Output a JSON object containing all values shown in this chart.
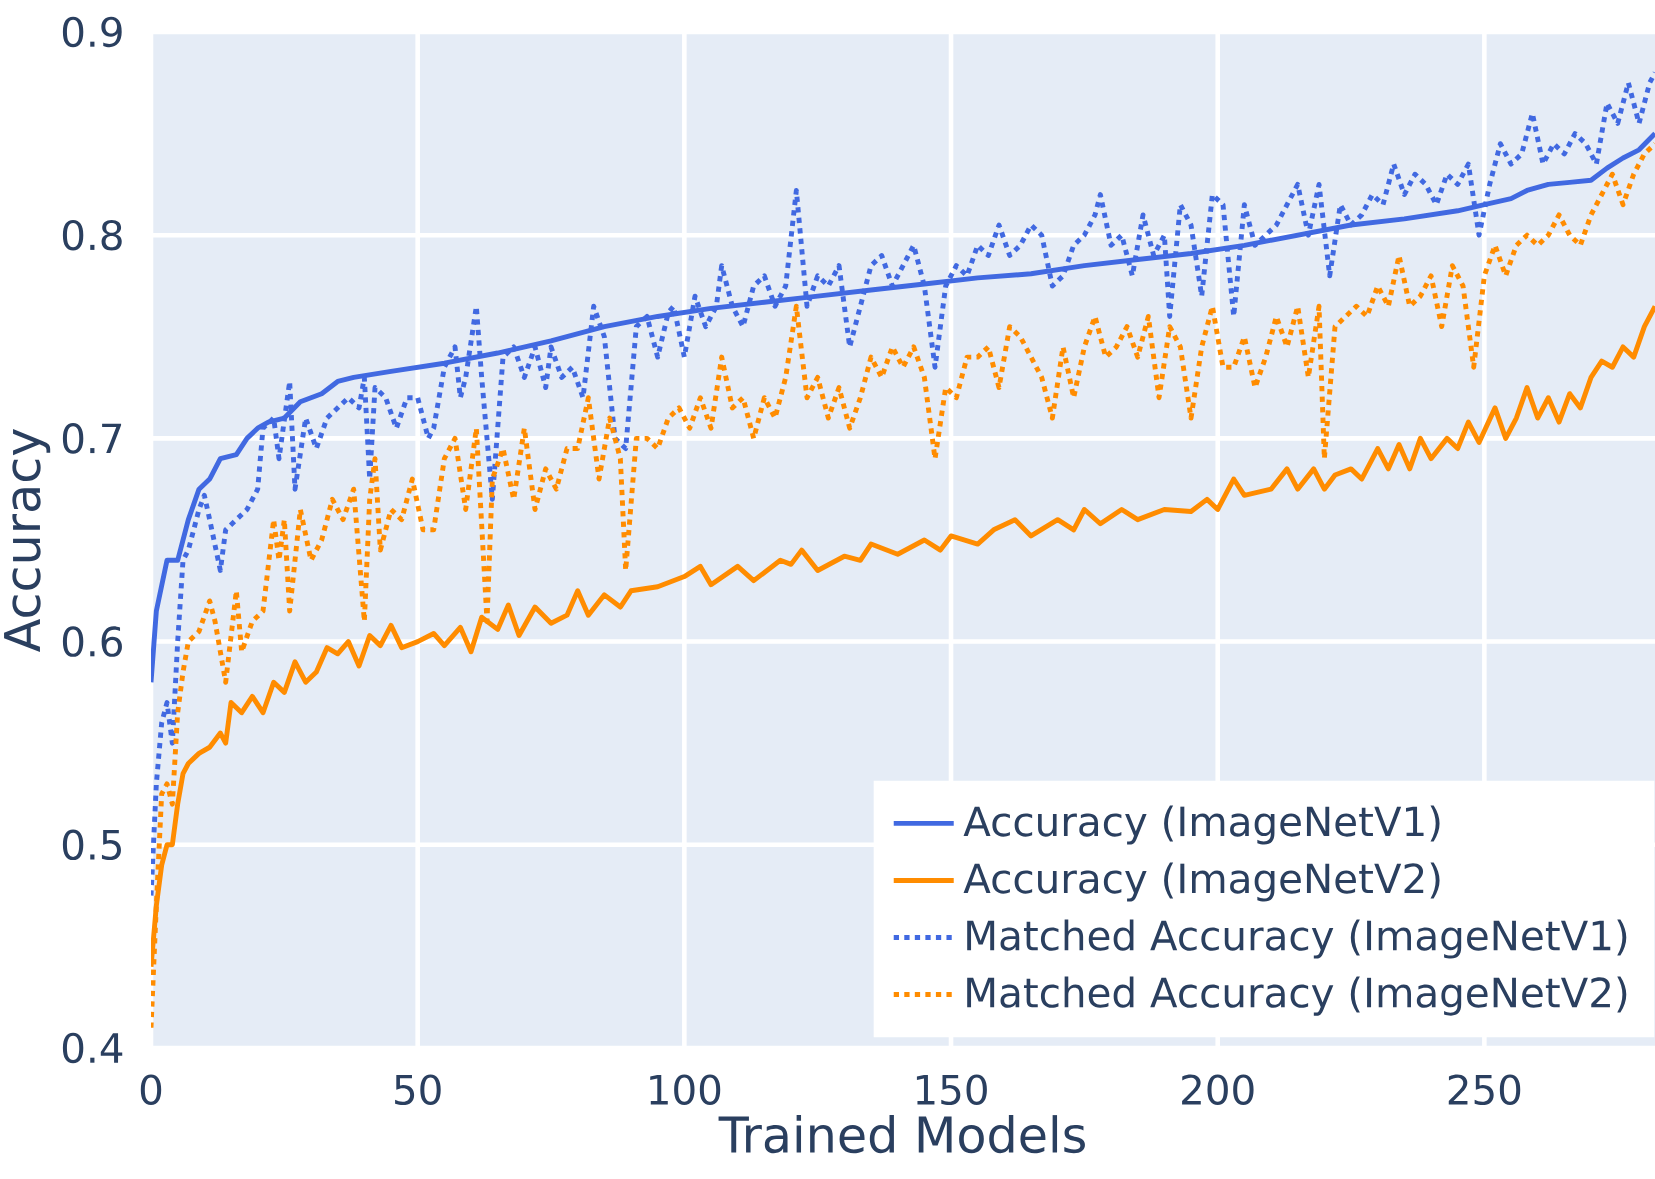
{
  "chart_data": {
    "type": "line",
    "xlabel": "Trained Models",
    "ylabel": "Accuracy",
    "xlim": [
      0,
      282
    ],
    "ylim": [
      0.4,
      0.9
    ],
    "xticks": [
      0,
      50,
      100,
      150,
      200,
      250
    ],
    "yticks": [
      0.4,
      0.5,
      0.6,
      0.7,
      0.8,
      0.9
    ],
    "grid": true,
    "legend": "bottom right",
    "series": [
      {
        "name": "Accuracy (ImageNetV1)",
        "color": "#4169e1",
        "line_style": "solid",
        "x": [
          0,
          1,
          3,
          5,
          7,
          9,
          11,
          13,
          16,
          18,
          20,
          22,
          25,
          28,
          32,
          35,
          38,
          45,
          55,
          65,
          75,
          85,
          95,
          105,
          115,
          125,
          135,
          145,
          155,
          165,
          175,
          185,
          195,
          205,
          215,
          225,
          235,
          245,
          250,
          255,
          258,
          262,
          266,
          270,
          273,
          276,
          279,
          282
        ],
        "values": [
          0.58,
          0.615,
          0.64,
          0.64,
          0.66,
          0.675,
          0.68,
          0.69,
          0.692,
          0.7,
          0.705,
          0.708,
          0.71,
          0.718,
          0.722,
          0.728,
          0.73,
          0.733,
          0.737,
          0.742,
          0.748,
          0.755,
          0.76,
          0.764,
          0.767,
          0.77,
          0.773,
          0.776,
          0.779,
          0.781,
          0.785,
          0.788,
          0.791,
          0.795,
          0.8,
          0.805,
          0.808,
          0.812,
          0.815,
          0.818,
          0.822,
          0.825,
          0.826,
          0.827,
          0.833,
          0.838,
          0.842,
          0.85
        ]
      },
      {
        "name": "Accuracy (ImageNetV2)",
        "color": "#ff8c00",
        "line_style": "solid",
        "x": [
          0,
          1,
          2,
          3,
          4,
          5,
          6,
          7,
          9,
          11,
          13,
          14,
          15,
          17,
          19,
          21,
          23,
          25,
          27,
          29,
          31,
          33,
          35,
          37,
          39,
          41,
          43,
          45,
          47,
          50,
          53,
          55,
          58,
          60,
          62,
          65,
          67,
          69,
          72,
          75,
          78,
          80,
          82,
          85,
          88,
          90,
          95,
          100,
          103,
          105,
          110,
          113,
          118,
          120,
          122,
          125,
          130,
          133,
          135,
          140,
          145,
          148,
          150,
          155,
          158,
          162,
          165,
          170,
          173,
          175,
          178,
          182,
          185,
          190,
          195,
          198,
          200,
          203,
          205,
          210,
          213,
          215,
          218,
          220,
          222,
          225,
          227,
          230,
          232,
          234,
          236,
          238,
          240,
          243,
          245,
          247,
          249,
          252,
          254,
          256,
          258,
          260,
          262,
          264,
          266,
          268,
          270,
          272,
          274,
          276,
          278,
          280,
          282
        ],
        "values": [
          0.44,
          0.47,
          0.49,
          0.5,
          0.5,
          0.52,
          0.535,
          0.54,
          0.545,
          0.548,
          0.555,
          0.55,
          0.57,
          0.565,
          0.573,
          0.565,
          0.58,
          0.575,
          0.59,
          0.58,
          0.585,
          0.597,
          0.594,
          0.6,
          0.588,
          0.603,
          0.598,
          0.608,
          0.597,
          0.6,
          0.604,
          0.598,
          0.607,
          0.595,
          0.612,
          0.606,
          0.618,
          0.603,
          0.617,
          0.609,
          0.613,
          0.625,
          0.613,
          0.623,
          0.617,
          0.625,
          0.627,
          0.632,
          0.637,
          0.628,
          0.637,
          0.63,
          0.64,
          0.638,
          0.645,
          0.635,
          0.642,
          0.64,
          0.648,
          0.643,
          0.65,
          0.645,
          0.652,
          0.648,
          0.655,
          0.66,
          0.652,
          0.66,
          0.655,
          0.665,
          0.658,
          0.665,
          0.66,
          0.665,
          0.664,
          0.67,
          0.665,
          0.68,
          0.672,
          0.675,
          0.685,
          0.675,
          0.685,
          0.675,
          0.682,
          0.685,
          0.68,
          0.695,
          0.685,
          0.697,
          0.685,
          0.7,
          0.69,
          0.7,
          0.695,
          0.708,
          0.698,
          0.715,
          0.7,
          0.71,
          0.725,
          0.71,
          0.72,
          0.708,
          0.722,
          0.715,
          0.73,
          0.738,
          0.735,
          0.745,
          0.74,
          0.755,
          0.765
        ]
      },
      {
        "name": "Matched Accuracy (ImageNetV1)",
        "color": "#4169e1",
        "line_style": "dotted",
        "x": [
          0,
          1,
          2,
          3,
          4,
          5,
          6,
          7,
          9,
          10,
          11,
          13,
          14,
          16,
          18,
          20,
          21,
          23,
          24,
          26,
          27,
          29,
          31,
          33,
          35,
          37,
          39,
          40,
          41,
          42,
          44,
          46,
          48,
          50,
          52,
          53,
          55,
          57,
          58,
          59,
          61,
          62,
          64,
          66,
          68,
          70,
          72,
          74,
          75,
          77,
          79,
          81,
          83,
          85,
          87,
          89,
          91,
          93,
          95,
          97,
          98,
          100,
          102,
          104,
          106,
          107,
          109,
          111,
          113,
          115,
          117,
          119,
          121,
          123,
          125,
          127,
          129,
          131,
          133,
          135,
          137,
          139,
          141,
          143,
          145,
          147,
          149,
          151,
          153,
          155,
          157,
          159,
          161,
          163,
          165,
          167,
          169,
          171,
          173,
          175,
          177,
          178,
          180,
          182,
          184,
          186,
          188,
          190,
          191,
          193,
          195,
          197,
          199,
          201,
          203,
          205,
          207,
          209,
          211,
          213,
          215,
          217,
          219,
          221,
          223,
          225,
          227,
          229,
          231,
          233,
          235,
          237,
          239,
          241,
          243,
          245,
          247,
          249,
          251,
          253,
          255,
          257,
          259,
          261,
          263,
          265,
          267,
          269,
          271,
          273,
          275,
          277,
          279,
          281,
          282
        ],
        "values": [
          0.475,
          0.53,
          0.56,
          0.57,
          0.55,
          0.6,
          0.64,
          0.645,
          0.665,
          0.672,
          0.66,
          0.635,
          0.655,
          0.66,
          0.665,
          0.675,
          0.705,
          0.71,
          0.69,
          0.728,
          0.675,
          0.71,
          0.695,
          0.71,
          0.715,
          0.72,
          0.715,
          0.73,
          0.68,
          0.725,
          0.72,
          0.705,
          0.72,
          0.72,
          0.7,
          0.705,
          0.735,
          0.745,
          0.72,
          0.73,
          0.765,
          0.73,
          0.67,
          0.74,
          0.745,
          0.73,
          0.745,
          0.725,
          0.745,
          0.73,
          0.735,
          0.72,
          0.765,
          0.75,
          0.7,
          0.695,
          0.755,
          0.76,
          0.74,
          0.762,
          0.765,
          0.74,
          0.77,
          0.755,
          0.765,
          0.785,
          0.765,
          0.755,
          0.775,
          0.78,
          0.765,
          0.775,
          0.822,
          0.765,
          0.78,
          0.775,
          0.785,
          0.745,
          0.765,
          0.785,
          0.79,
          0.775,
          0.785,
          0.795,
          0.775,
          0.735,
          0.775,
          0.785,
          0.78,
          0.795,
          0.79,
          0.805,
          0.79,
          0.795,
          0.805,
          0.8,
          0.775,
          0.78,
          0.795,
          0.8,
          0.81,
          0.82,
          0.795,
          0.8,
          0.78,
          0.81,
          0.79,
          0.8,
          0.76,
          0.815,
          0.805,
          0.77,
          0.82,
          0.815,
          0.76,
          0.815,
          0.795,
          0.8,
          0.805,
          0.815,
          0.825,
          0.8,
          0.825,
          0.78,
          0.815,
          0.805,
          0.81,
          0.82,
          0.815,
          0.835,
          0.82,
          0.83,
          0.825,
          0.815,
          0.83,
          0.825,
          0.835,
          0.8,
          0.825,
          0.845,
          0.835,
          0.84,
          0.86,
          0.835,
          0.845,
          0.84,
          0.85,
          0.845,
          0.835,
          0.865,
          0.855,
          0.875,
          0.855,
          0.875,
          0.88
        ]
      },
      {
        "name": "Matched Accuracy (ImageNetV2)",
        "color": "#ff8c00",
        "line_style": "dotted",
        "x": [
          0,
          1,
          2,
          3,
          4,
          5,
          6,
          7,
          9,
          11,
          12,
          14,
          16,
          17,
          19,
          21,
          23,
          24,
          25,
          26,
          28,
          30,
          32,
          34,
          36,
          38,
          40,
          41,
          42,
          43,
          45,
          47,
          49,
          51,
          53,
          55,
          57,
          59,
          61,
          63,
          64,
          66,
          68,
          70,
          72,
          74,
          76,
          78,
          80,
          82,
          84,
          86,
          88,
          89,
          91,
          93,
          95,
          97,
          99,
          101,
          103,
          105,
          107,
          109,
          111,
          113,
          115,
          117,
          119,
          121,
          123,
          125,
          127,
          129,
          131,
          133,
          135,
          137,
          139,
          141,
          143,
          145,
          147,
          149,
          151,
          153,
          155,
          157,
          159,
          161,
          163,
          165,
          167,
          169,
          171,
          173,
          175,
          177,
          179,
          181,
          183,
          185,
          187,
          189,
          191,
          193,
          195,
          197,
          199,
          201,
          203,
          205,
          207,
          209,
          211,
          213,
          215,
          217,
          219,
          220,
          222,
          224,
          226,
          228,
          230,
          232,
          234,
          236,
          238,
          240,
          242,
          244,
          246,
          248,
          250,
          252,
          254,
          256,
          258,
          260,
          262,
          264,
          266,
          268,
          270,
          272,
          274,
          276,
          278,
          280,
          282
        ],
        "values": [
          0.41,
          0.47,
          0.525,
          0.53,
          0.52,
          0.565,
          0.585,
          0.6,
          0.605,
          0.62,
          0.61,
          0.58,
          0.625,
          0.595,
          0.61,
          0.615,
          0.66,
          0.64,
          0.66,
          0.615,
          0.665,
          0.64,
          0.65,
          0.67,
          0.66,
          0.675,
          0.61,
          0.67,
          0.69,
          0.645,
          0.665,
          0.66,
          0.68,
          0.655,
          0.655,
          0.69,
          0.7,
          0.665,
          0.705,
          0.61,
          0.68,
          0.695,
          0.67,
          0.705,
          0.665,
          0.685,
          0.675,
          0.695,
          0.695,
          0.72,
          0.68,
          0.71,
          0.69,
          0.635,
          0.7,
          0.7,
          0.695,
          0.71,
          0.715,
          0.705,
          0.72,
          0.705,
          0.74,
          0.715,
          0.72,
          0.7,
          0.72,
          0.71,
          0.73,
          0.765,
          0.72,
          0.73,
          0.71,
          0.725,
          0.705,
          0.72,
          0.74,
          0.73,
          0.745,
          0.735,
          0.745,
          0.73,
          0.69,
          0.725,
          0.72,
          0.74,
          0.74,
          0.745,
          0.725,
          0.755,
          0.75,
          0.74,
          0.73,
          0.71,
          0.745,
          0.72,
          0.745,
          0.76,
          0.74,
          0.745,
          0.755,
          0.74,
          0.76,
          0.72,
          0.755,
          0.745,
          0.71,
          0.745,
          0.765,
          0.735,
          0.735,
          0.75,
          0.725,
          0.74,
          0.76,
          0.745,
          0.765,
          0.73,
          0.765,
          0.69,
          0.755,
          0.76,
          0.765,
          0.76,
          0.775,
          0.765,
          0.79,
          0.765,
          0.77,
          0.78,
          0.755,
          0.785,
          0.775,
          0.735,
          0.78,
          0.795,
          0.78,
          0.795,
          0.8,
          0.795,
          0.8,
          0.81,
          0.8,
          0.795,
          0.81,
          0.82,
          0.83,
          0.815,
          0.83,
          0.84,
          0.845
        ]
      }
    ]
  }
}
